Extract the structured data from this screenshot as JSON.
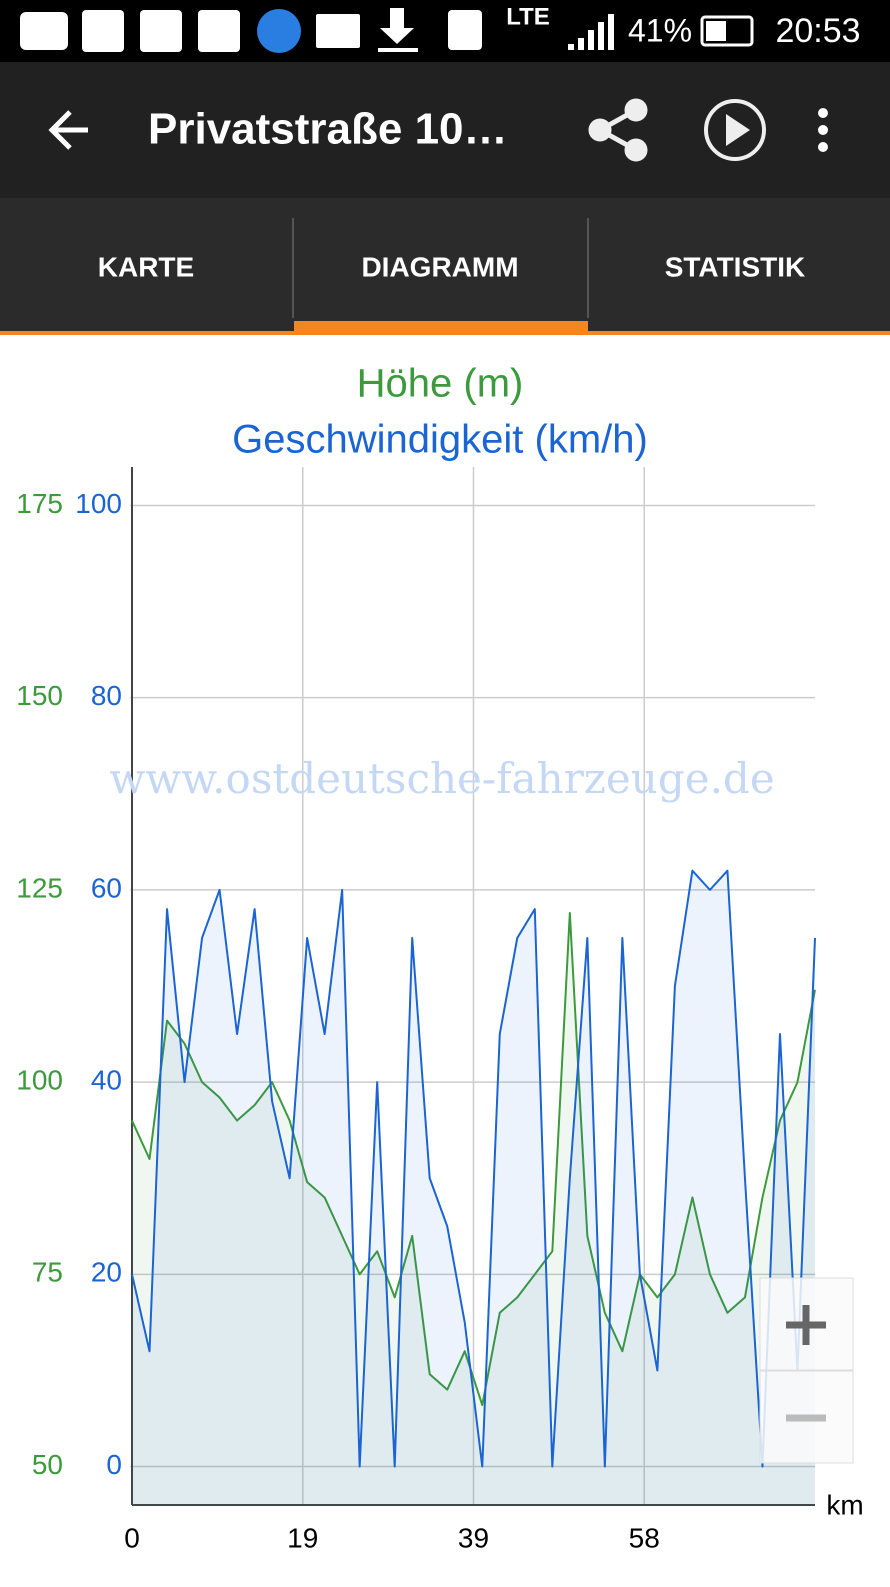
{
  "status_bar": {
    "network": "LTE",
    "battery": "41%",
    "time": "20:53"
  },
  "toolbar": {
    "title": "Privatstraße 10…"
  },
  "tabs": [
    "KARTE",
    "DIAGRAMM",
    "STATISTIK"
  ],
  "watermark": "www.ostdeutsche-fahrzeuge.de",
  "chart_data": {
    "type": "line",
    "x_label": "km",
    "x": [
      0,
      2,
      4,
      6,
      8,
      10,
      12,
      14,
      16,
      18,
      20,
      22,
      24,
      26,
      28,
      30,
      32,
      34,
      36,
      38,
      40,
      42,
      44,
      46,
      48,
      50,
      52,
      54,
      56,
      58,
      60,
      62,
      64,
      66,
      68,
      70,
      72,
      74,
      76,
      78
    ],
    "xlim": [
      0,
      78
    ],
    "xticks": [
      0,
      {
        "value": 19.5,
        "label": "19"
      },
      39,
      {
        "value": 58.5,
        "label": "58"
      }
    ],
    "ylim": [
      -4,
      104
    ],
    "yticks": [
      0,
      20,
      40,
      60,
      80,
      100
    ],
    "y2lim": [
      45,
      180
    ],
    "y2ticks": [
      50,
      75,
      100,
      125,
      150,
      175
    ],
    "grid": true,
    "series": [
      {
        "name": "Höhe (m)",
        "color": "#3c9a3c",
        "axis": "y2",
        "values": [
          95,
          90,
          108,
          105,
          100,
          98,
          95,
          97,
          100,
          95,
          87,
          85,
          80,
          75,
          78,
          72,
          80,
          62,
          60,
          65,
          58,
          70,
          72,
          75,
          78,
          122,
          80,
          70,
          65,
          75,
          72,
          75,
          85,
          75,
          70,
          72,
          85,
          95,
          100,
          112
        ]
      },
      {
        "name": "Geschwindigkeit (km/h)",
        "color": "#1a64d4",
        "axis": "y",
        "values": [
          20,
          12,
          58,
          40,
          55,
          60,
          45,
          58,
          38,
          30,
          55,
          45,
          60,
          0,
          40,
          0,
          55,
          30,
          25,
          15,
          0,
          45,
          55,
          58,
          0,
          30,
          55,
          0,
          55,
          20,
          10,
          50,
          62,
          60,
          62,
          30,
          0,
          45,
          10,
          55
        ]
      }
    ]
  }
}
